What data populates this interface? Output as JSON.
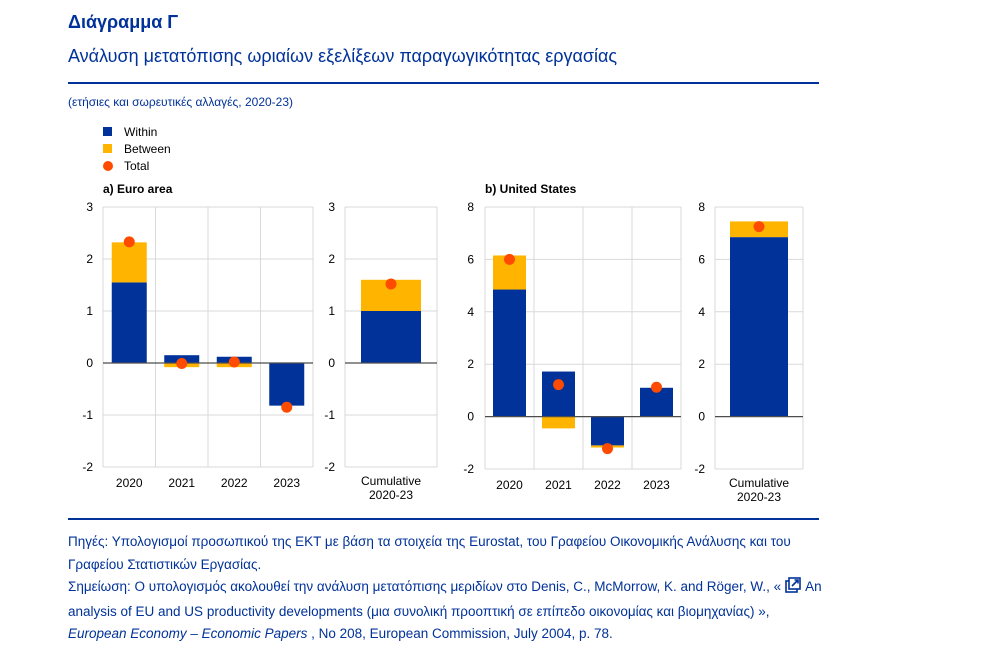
{
  "header": {
    "title": "Διάγραμμα Γ",
    "subtitle": "Ανάλυση μετατόπισης ωριαίων εξελίξεων παραγωγικότητας εργασίας",
    "units": "(ετήσιες και σωρευτικές αλλαγές, 2020-23)"
  },
  "legend": {
    "within": "Within",
    "between": "Between",
    "total": "Total"
  },
  "colors": {
    "within": "#003299",
    "between": "#ffb400",
    "total": "#ff4b00"
  },
  "chart_data": [
    {
      "type": "bar",
      "stacked": true,
      "title": "a) Euro area",
      "categories": [
        "2020",
        "2021",
        "2022",
        "2023"
      ],
      "series": [
        {
          "name": "Within",
          "values": [
            1.55,
            0.15,
            0.12,
            -0.82
          ]
        },
        {
          "name": "Between",
          "values": [
            0.77,
            -0.08,
            -0.08,
            0.0
          ]
        },
        {
          "name": "Total",
          "values": [
            2.33,
            -0.01,
            0.02,
            -0.85
          ]
        }
      ],
      "ylim": [
        -2,
        3
      ],
      "yticks": [
        "3",
        "2",
        "1",
        "0",
        "-1",
        "-2"
      ],
      "grid": true
    },
    {
      "type": "bar",
      "stacked": true,
      "title": "",
      "categories": [
        "Cumulative 2020-23"
      ],
      "category_lines": [
        "Cumulative",
        "2020-23"
      ],
      "series": [
        {
          "name": "Within",
          "values": [
            1.0
          ]
        },
        {
          "name": "Between",
          "values": [
            0.6
          ]
        },
        {
          "name": "Total",
          "values": [
            1.52
          ]
        }
      ],
      "ylim": [
        -2,
        3
      ],
      "yticks": [
        "3",
        "2",
        "1",
        "0",
        "-1",
        "-2"
      ],
      "grid": true
    },
    {
      "type": "bar",
      "stacked": true,
      "title": "b) United States",
      "categories": [
        "2020",
        "2021",
        "2022",
        "2023"
      ],
      "series": [
        {
          "name": "Within",
          "values": [
            4.85,
            1.72,
            -1.1,
            1.1
          ]
        },
        {
          "name": "Between",
          "values": [
            1.3,
            -0.45,
            -0.08,
            0.0
          ]
        },
        {
          "name": "Total",
          "values": [
            6.0,
            1.22,
            -1.22,
            1.12
          ]
        }
      ],
      "ylim": [
        -2,
        8
      ],
      "yticks": [
        "8",
        "6",
        "4",
        "2",
        "0",
        "-2"
      ],
      "grid": true
    },
    {
      "type": "bar",
      "stacked": true,
      "title": "",
      "categories": [
        "Cumulative 2020-23"
      ],
      "category_lines": [
        "Cumulative",
        "2020-23"
      ],
      "series": [
        {
          "name": "Within",
          "values": [
            6.85
          ]
        },
        {
          "name": "Between",
          "values": [
            0.6
          ]
        },
        {
          "name": "Total",
          "values": [
            7.25
          ]
        }
      ],
      "ylim": [
        -2,
        8
      ],
      "yticks": [
        "8",
        "6",
        "4",
        "2",
        "0",
        "-2"
      ],
      "grid": true
    }
  ],
  "notes": {
    "sources": "Πηγές: Υπολογισμοί προσωπικού της ΕΚΤ με βάση τα στοιχεία της Eurostat, του Γραφείου Οικονομικής Ανάλυσης και του Γραφείου Στατιστικών Εργασίας.",
    "note_prefix": "Σημείωση: Ο υπολογισμός ακολουθεί την ανάλυση μετατόπισης μεριδίων στο Denis, C., McMorrow, K. and Röger, W., «",
    "link_text": "An analysis of EU and US productivity developments (μια συνολική προοπτική σε επίπεδο οικονομίας και βιομηχανίας)",
    "note_mid": " », ",
    "journal": "European Economy – Economic Papers",
    "note_suffix": " , No 208, European Commission, July 2004, p. 78."
  }
}
